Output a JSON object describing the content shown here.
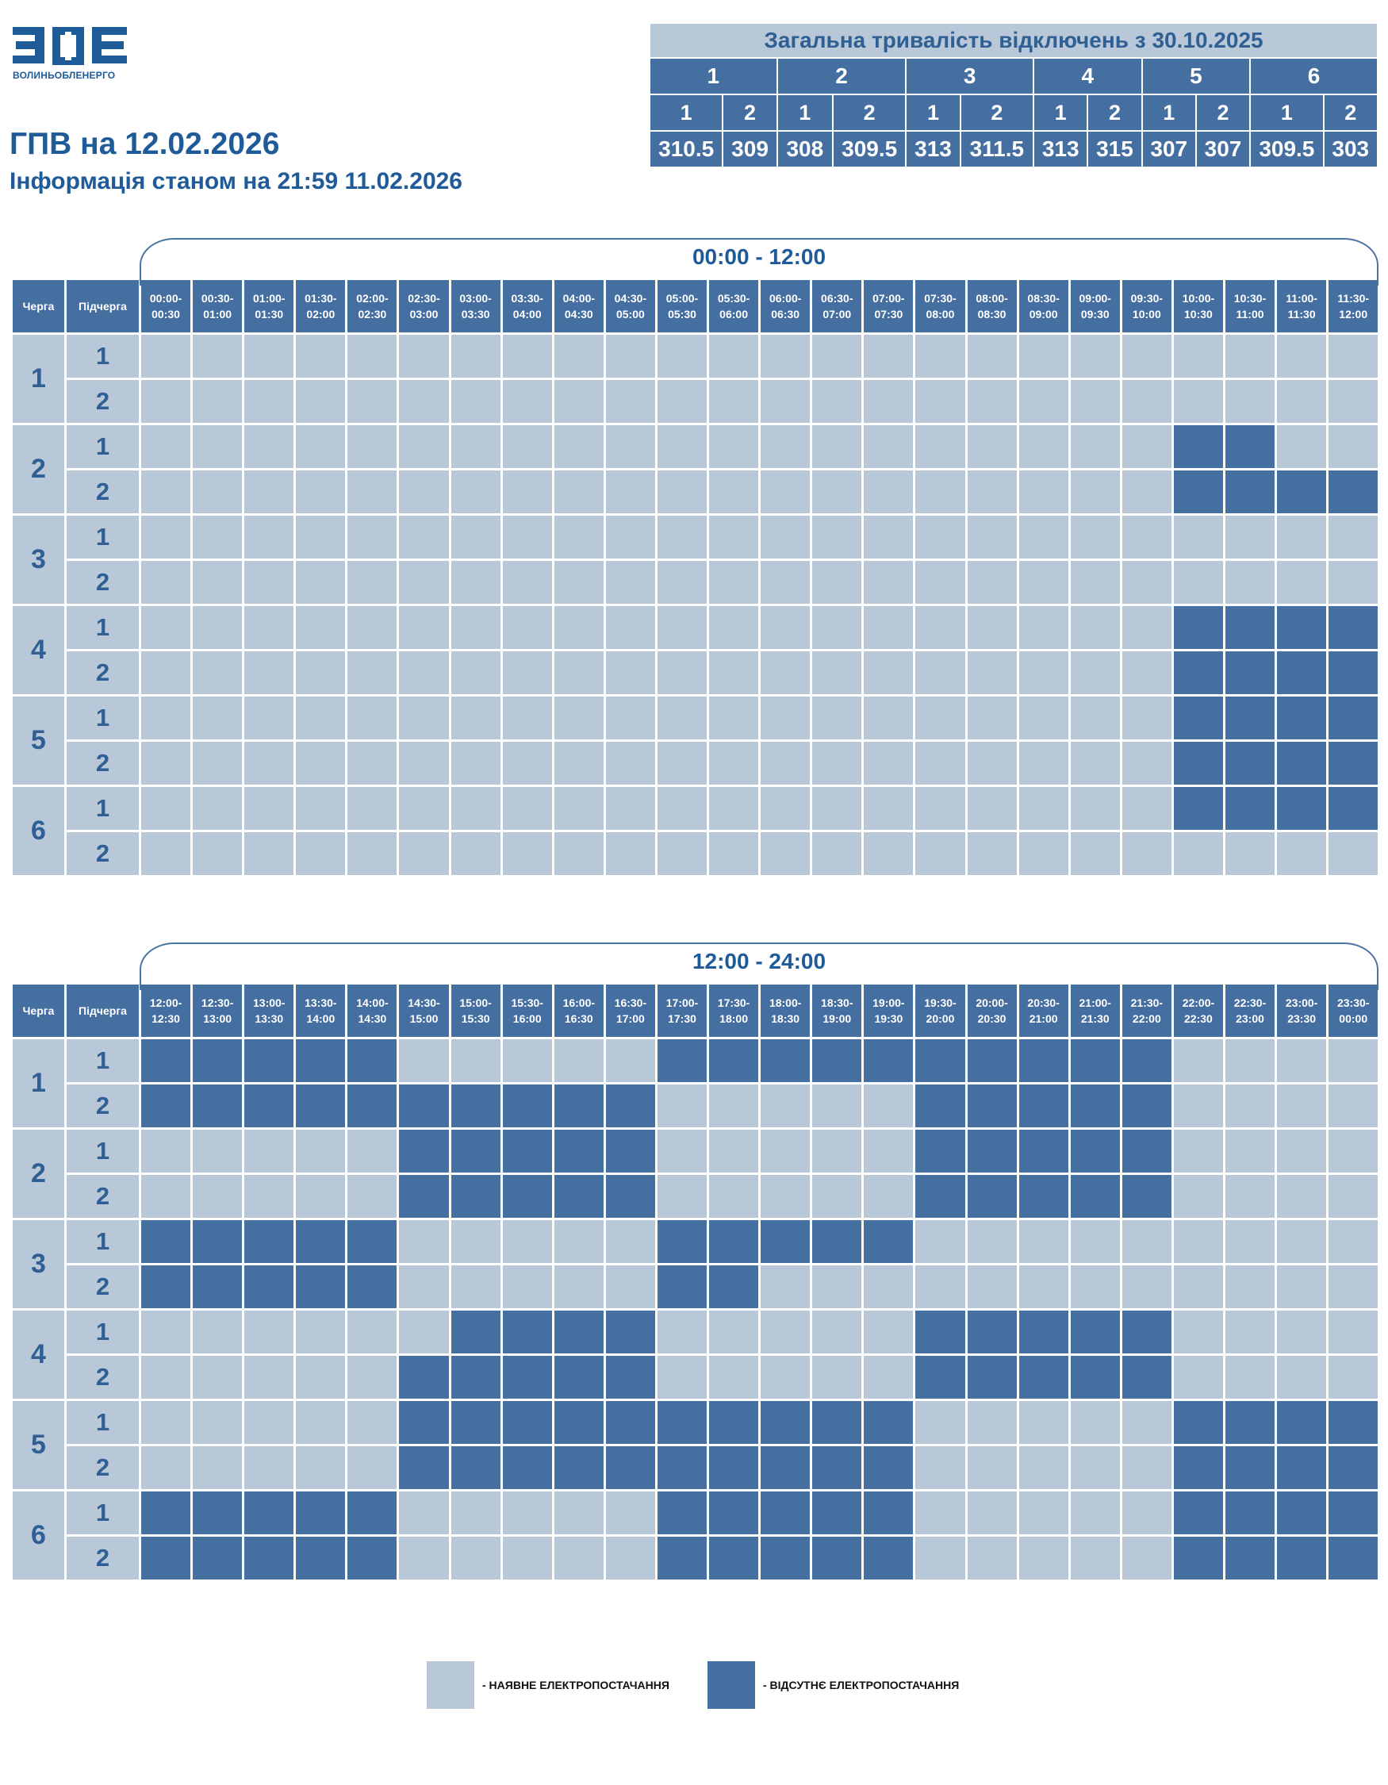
{
  "logo": {
    "name": "ВОЛИНЬОБЛЕНЕРГО"
  },
  "title": "ГПВ на 12.02.2026",
  "subtitle": "Інформація станом на 21:59 11.02.2026",
  "summary": {
    "title": "Загальна тривалість відключень з 30.10.2025",
    "queues": [
      "1",
      "2",
      "3",
      "4",
      "5",
      "6"
    ],
    "subqueues": [
      "1",
      "2",
      "1",
      "2",
      "1",
      "2",
      "1",
      "2",
      "1",
      "2",
      "1",
      "2"
    ],
    "values": [
      "310.5",
      "309",
      "308",
      "309.5",
      "313",
      "311.5",
      "313",
      "315",
      "307",
      "307",
      "309.5",
      "303"
    ]
  },
  "headers": {
    "queue": "Черга",
    "subqueue": "Підчерга"
  },
  "blocks": [
    {
      "range": "00:00 - 12:00",
      "slots": [
        "00:00-\n00:30",
        "00:30-\n01:00",
        "01:00-\n01:30",
        "01:30-\n02:00",
        "02:00-\n02:30",
        "02:30-\n03:00",
        "03:00-\n03:30",
        "03:30-\n04:00",
        "04:00-\n04:30",
        "04:30-\n05:00",
        "05:00-\n05:30",
        "05:30-\n06:00",
        "06:00-\n06:30",
        "06:30-\n07:00",
        "07:00-\n07:30",
        "07:30-\n08:00",
        "08:00-\n08:30",
        "08:30-\n09:00",
        "09:00-\n09:30",
        "09:30-\n10:00",
        "10:00-\n10:30",
        "10:30-\n11:00",
        "11:00-\n11:30",
        "11:30-\n12:00"
      ],
      "rows": [
        {
          "queue": "1",
          "sub": "1",
          "off": "000000000000000000000000"
        },
        {
          "queue": "1",
          "sub": "2",
          "off": "000000000000000000000000"
        },
        {
          "queue": "2",
          "sub": "1",
          "off": "000000000000000000001100"
        },
        {
          "queue": "2",
          "sub": "2",
          "off": "000000000000000000001111"
        },
        {
          "queue": "3",
          "sub": "1",
          "off": "000000000000000000000000"
        },
        {
          "queue": "3",
          "sub": "2",
          "off": "000000000000000000000000"
        },
        {
          "queue": "4",
          "sub": "1",
          "off": "000000000000000000001111"
        },
        {
          "queue": "4",
          "sub": "2",
          "off": "000000000000000000001111"
        },
        {
          "queue": "5",
          "sub": "1",
          "off": "000000000000000000001111"
        },
        {
          "queue": "5",
          "sub": "2",
          "off": "000000000000000000001111"
        },
        {
          "queue": "6",
          "sub": "1",
          "off": "000000000000000000001111"
        },
        {
          "queue": "6",
          "sub": "2",
          "off": "000000000000000000000000"
        }
      ]
    },
    {
      "range": "12:00 - 24:00",
      "slots": [
        "12:00-\n12:30",
        "12:30-\n13:00",
        "13:00-\n13:30",
        "13:30-\n14:00",
        "14:00-\n14:30",
        "14:30-\n15:00",
        "15:00-\n15:30",
        "15:30-\n16:00",
        "16:00-\n16:30",
        "16:30-\n17:00",
        "17:00-\n17:30",
        "17:30-\n18:00",
        "18:00-\n18:30",
        "18:30-\n19:00",
        "19:00-\n19:30",
        "19:30-\n20:00",
        "20:00-\n20:30",
        "20:30-\n21:00",
        "21:00-\n21:30",
        "21:30-\n22:00",
        "22:00-\n22:30",
        "22:30-\n23:00",
        "23:00-\n23:30",
        "23:30-\n00:00"
      ],
      "rows": [
        {
          "queue": "1",
          "sub": "1",
          "off": "111110000011111111110000"
        },
        {
          "queue": "1",
          "sub": "2",
          "off": "111111111100000111110000"
        },
        {
          "queue": "2",
          "sub": "1",
          "off": "000001111100000111110000"
        },
        {
          "queue": "2",
          "sub": "2",
          "off": "000001111100000111110000"
        },
        {
          "queue": "3",
          "sub": "1",
          "off": "111110000011111000000000"
        },
        {
          "queue": "3",
          "sub": "2",
          "off": "111110000011000000000000"
        },
        {
          "queue": "4",
          "sub": "1",
          "off": "000000111100000111110000"
        },
        {
          "queue": "4",
          "sub": "2",
          "off": "000001111100000111110000"
        },
        {
          "queue": "5",
          "sub": "1",
          "off": "000001111111111000001111"
        },
        {
          "queue": "5",
          "sub": "2",
          "off": "000001111111111000001111"
        },
        {
          "queue": "6",
          "sub": "1",
          "off": "111110000011111000001111"
        },
        {
          "queue": "6",
          "sub": "2",
          "off": "111110000011111000001111"
        }
      ]
    }
  ],
  "legend": {
    "on_label": "- НАЯВНЕ ЕЛЕКТРОПОСТАЧАННЯ",
    "off_label": "- ВІДСУТНЄ ЕЛЕКТРОПОСТАЧАННЯ",
    "on_color": "#b9c8d8",
    "off_color": "#456fa0"
  }
}
